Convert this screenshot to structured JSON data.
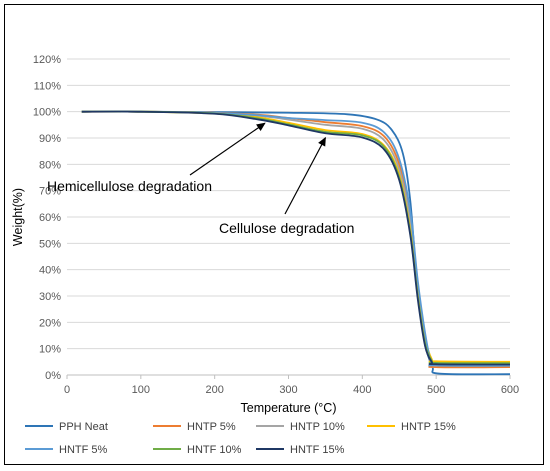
{
  "chart_data": {
    "type": "line",
    "xlabel": "Temperature (°C)",
    "ylabel": "Weight(%)",
    "xlim": [
      0,
      600
    ],
    "ylim": [
      0,
      120
    ],
    "x_ticks": [
      0,
      100,
      200,
      300,
      400,
      500,
      600
    ],
    "y_ticks": [
      0,
      10,
      20,
      30,
      40,
      50,
      60,
      70,
      80,
      90,
      100,
      110,
      120
    ],
    "y_tick_labels": [
      "0%",
      "10%",
      "20%",
      "30%",
      "40%",
      "50%",
      "60%",
      "70%",
      "80%",
      "90%",
      "100%",
      "110%",
      "120%"
    ],
    "grid": "horizontal",
    "legend_position": "bottom",
    "series": [
      {
        "name": "PPH Neat",
        "color": "#2E75B6",
        "points": [
          [
            20,
            100
          ],
          [
            100,
            100
          ],
          [
            200,
            99.8
          ],
          [
            300,
            99.6
          ],
          [
            380,
            99
          ],
          [
            420,
            97
          ],
          [
            440,
            93
          ],
          [
            455,
            84
          ],
          [
            465,
            66
          ],
          [
            475,
            32
          ],
          [
            485,
            12
          ],
          [
            495,
            3
          ],
          [
            505,
            0.5
          ],
          [
            600,
            0.3
          ]
        ]
      },
      {
        "name": "HNTP 5%",
        "color": "#ED7D31",
        "points": [
          [
            20,
            100
          ],
          [
            100,
            100
          ],
          [
            200,
            99.6
          ],
          [
            260,
            98.8
          ],
          [
            300,
            97.6
          ],
          [
            350,
            96
          ],
          [
            400,
            94.5
          ],
          [
            430,
            90.5
          ],
          [
            450,
            80
          ],
          [
            465,
            60
          ],
          [
            475,
            35
          ],
          [
            485,
            15
          ],
          [
            493,
            4.5
          ],
          [
            500,
            3
          ],
          [
            600,
            3
          ]
        ]
      },
      {
        "name": "HNTP 10%",
        "color": "#A5A5A5",
        "points": [
          [
            20,
            100
          ],
          [
            100,
            100
          ],
          [
            200,
            99.5
          ],
          [
            260,
            98.4
          ],
          [
            300,
            97
          ],
          [
            350,
            95
          ],
          [
            400,
            93.5
          ],
          [
            430,
            89
          ],
          [
            450,
            78
          ],
          [
            465,
            58
          ],
          [
            475,
            34
          ],
          [
            485,
            14
          ],
          [
            494,
            5
          ],
          [
            500,
            4.2
          ],
          [
            600,
            4
          ]
        ]
      },
      {
        "name": "HNTP 15%",
        "color": "#FFC000",
        "points": [
          [
            20,
            100
          ],
          [
            100,
            100
          ],
          [
            200,
            99.3
          ],
          [
            260,
            97.8
          ],
          [
            300,
            95.8
          ],
          [
            350,
            93
          ],
          [
            400,
            91.5
          ],
          [
            430,
            87
          ],
          [
            450,
            76
          ],
          [
            465,
            55
          ],
          [
            475,
            32
          ],
          [
            485,
            14
          ],
          [
            494,
            6
          ],
          [
            500,
            5.2
          ],
          [
            600,
            5
          ]
        ]
      },
      {
        "name": "HNTF 5%",
        "color": "#5B9BD5",
        "points": [
          [
            20,
            100
          ],
          [
            100,
            100
          ],
          [
            200,
            99.5
          ],
          [
            260,
            98.6
          ],
          [
            300,
            97.6
          ],
          [
            350,
            96.8
          ],
          [
            400,
            95.8
          ],
          [
            430,
            92
          ],
          [
            450,
            82
          ],
          [
            465,
            62
          ],
          [
            475,
            36
          ],
          [
            485,
            16
          ],
          [
            493,
            5
          ],
          [
            500,
            3.6
          ],
          [
            600,
            3.5
          ]
        ]
      },
      {
        "name": "HNTF 10%",
        "color": "#70AD47",
        "points": [
          [
            20,
            100
          ],
          [
            100,
            100
          ],
          [
            200,
            99.3
          ],
          [
            260,
            97.4
          ],
          [
            300,
            95.2
          ],
          [
            350,
            92.3
          ],
          [
            400,
            91
          ],
          [
            430,
            86.5
          ],
          [
            450,
            75
          ],
          [
            465,
            54
          ],
          [
            475,
            30
          ],
          [
            485,
            12
          ],
          [
            494,
            5.5
          ],
          [
            500,
            4.6
          ],
          [
            600,
            4.5
          ]
        ]
      },
      {
        "name": "HNTF 15%",
        "color": "#1F3864",
        "points": [
          [
            20,
            100
          ],
          [
            100,
            100
          ],
          [
            200,
            99.2
          ],
          [
            260,
            97
          ],
          [
            300,
            94.8
          ],
          [
            350,
            91.8
          ],
          [
            400,
            90.2
          ],
          [
            430,
            85.5
          ],
          [
            450,
            74
          ],
          [
            465,
            53
          ],
          [
            475,
            29
          ],
          [
            485,
            11
          ],
          [
            494,
            5
          ],
          [
            500,
            4.1
          ],
          [
            600,
            4
          ]
        ]
      }
    ],
    "annotations": [
      {
        "text": "Hemicellulose degradation",
        "arrow_to": [
          268,
          97.5
        ]
      },
      {
        "text": "Cellulose degradation",
        "arrow_to": [
          350,
          92
        ]
      }
    ]
  }
}
